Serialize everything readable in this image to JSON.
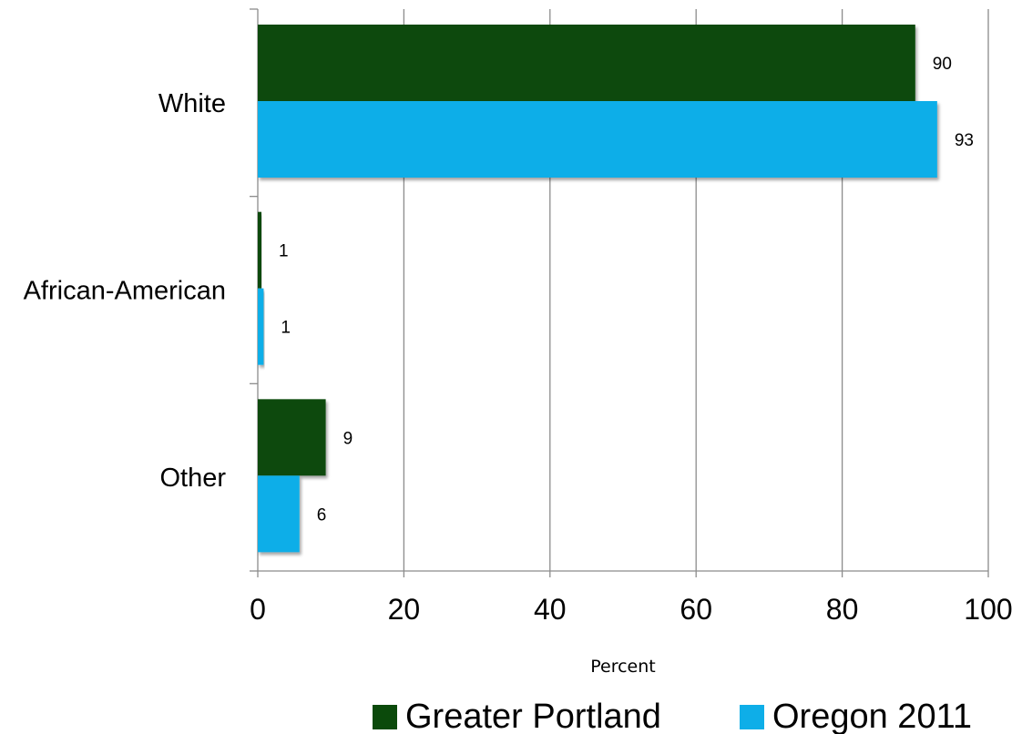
{
  "chart_data": {
    "type": "bar",
    "orientation": "horizontal",
    "categories": [
      "White",
      "African-American",
      "Other"
    ],
    "series": [
      {
        "name": "Greater Portland",
        "values": [
          90,
          0.5,
          9.3
        ],
        "labels": [
          "90",
          "1",
          "9"
        ],
        "color": "#0b4a0b"
      },
      {
        "name": "Oregon 2011",
        "values": [
          93,
          0.8,
          5.7
        ],
        "labels": [
          "93",
          "1",
          "6"
        ],
        "color": "#0eaee8"
      }
    ],
    "xlabel": "Percent",
    "ylabel": "",
    "xlim": [
      0,
      100
    ],
    "xticks": [
      "0",
      "20",
      "40",
      "60",
      "80",
      "100"
    ],
    "grid": true,
    "legend_position": "bottom"
  }
}
